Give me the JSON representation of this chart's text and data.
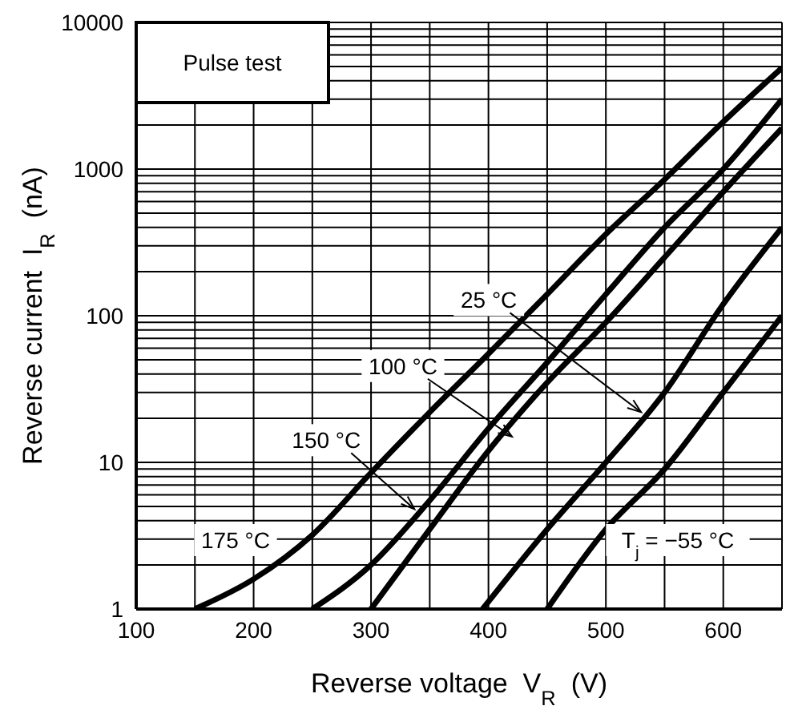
{
  "chart_data": {
    "type": "line",
    "xlabel": "Reverse voltage  V$_{R}$  (V)",
    "ylabel": "Reverse current  I$_{R}$  (nA)",
    "log": "y",
    "grid": true,
    "marker": "none",
    "line_style": "solid",
    "legend": false,
    "xlim": [
      100,
      650
    ],
    "ylim": [
      1,
      10000
    ],
    "xticks": [
      100,
      {
        "value": 150,
        "label": null
      },
      200,
      {
        "value": 250,
        "label": null
      },
      300,
      {
        "value": 350,
        "label": null
      },
      400,
      {
        "value": 450,
        "label": null
      },
      500,
      {
        "value": 550,
        "label": null
      },
      600,
      {
        "value": 650,
        "label": null
      }
    ],
    "yticks": [
      1,
      {
        "value": 2,
        "label": null
      },
      {
        "value": 3,
        "label": null
      },
      {
        "value": 4,
        "label": null
      },
      {
        "value": 5,
        "label": null
      },
      {
        "value": 6,
        "label": null
      },
      {
        "value": 7,
        "label": null
      },
      {
        "value": 8,
        "label": null
      },
      {
        "value": 9,
        "label": null
      },
      10,
      {
        "value": 20,
        "label": null
      },
      {
        "value": 30,
        "label": null
      },
      {
        "value": 40,
        "label": null
      },
      {
        "value": 50,
        "label": null
      },
      {
        "value": 60,
        "label": null
      },
      {
        "value": 70,
        "label": null
      },
      {
        "value": 80,
        "label": null
      },
      {
        "value": 90,
        "label": null
      },
      100,
      {
        "value": 200,
        "label": null
      },
      {
        "value": 300,
        "label": null
      },
      {
        "value": 400,
        "label": null
      },
      {
        "value": 500,
        "label": null
      },
      {
        "value": 600,
        "label": null
      },
      {
        "value": 700,
        "label": null
      },
      {
        "value": 800,
        "label": null
      },
      {
        "value": 900,
        "label": null
      },
      1000,
      {
        "value": 2000,
        "label": null
      },
      {
        "value": 3000,
        "label": null
      },
      {
        "value": 4000,
        "label": null
      },
      {
        "value": 5000,
        "label": null
      },
      {
        "value": 6000,
        "label": null
      },
      {
        "value": 7000,
        "label": null
      },
      {
        "value": 8000,
        "label": null
      },
      {
        "value": 9000,
        "label": null
      },
      10000
    ],
    "series": [
      {
        "color": "#000000",
        "x": [
          150,
          200,
          250,
          300,
          350,
          400,
          450,
          500,
          550,
          600,
          650
        ],
        "values": [
          1,
          1.6,
          3.2,
          8.5,
          22,
          55,
          140,
          360,
          850,
          2100,
          4900
        ]
      },
      {
        "color": "#000000",
        "x": [
          250,
          300,
          350,
          400,
          450,
          500,
          550,
          600,
          650
        ],
        "values": [
          1,
          2,
          5.5,
          17,
          48,
          140,
          400,
          1000,
          3000
        ]
      },
      {
        "color": "#000000",
        "x": [
          300,
          350,
          400,
          450,
          500,
          550,
          600,
          650
        ],
        "values": [
          1,
          3.5,
          12,
          35,
          90,
          250,
          700,
          1900
        ]
      },
      {
        "color": "#000000",
        "x": [
          395,
          450,
          500,
          550,
          600,
          650
        ],
        "values": [
          1,
          3.5,
          10,
          30,
          120,
          400
        ]
      },
      {
        "color": "#000000",
        "x": [
          450,
          500,
          550,
          600,
          650
        ],
        "values": [
          1,
          3.5,
          9,
          30,
          100
        ]
      }
    ],
    "annotations": [
      "Pulse test",
      {
        "text": "25 °C",
        "x": 530,
        "y": 22
      },
      {
        "text": "100 °C",
        "x": 420,
        "y": 15
      },
      {
        "text": "150 °C",
        "x": 337,
        "y": 4.8
      },
      "175 °C",
      "T$_{j}$ = −55 °C"
    ]
  }
}
